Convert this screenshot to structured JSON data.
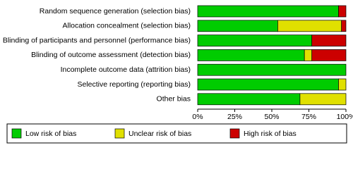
{
  "chart_data": {
    "type": "stacked_barh",
    "categories": [
      "Random sequence generation (selection bias)",
      "Allocation concealment (selection bias)",
      "Blinding of participants and personnel (performance bias)",
      "Blinding of outcome assessment (detection bias)",
      "Incomplete outcome data (attrition bias)",
      "Selective reporting (reporting bias)",
      "Other bias"
    ],
    "series": [
      {
        "name": "Low risk of bias",
        "color": "#00cc00",
        "values": [
          95,
          54,
          77,
          72,
          100,
          95,
          69
        ]
      },
      {
        "name": "Unclear risk of bias",
        "color": "#e0e000",
        "values": [
          0,
          43,
          0,
          5,
          0,
          5,
          31
        ]
      },
      {
        "name": "High risk of bias",
        "color": "#cc0000",
        "values": [
          5,
          3,
          23,
          23,
          0,
          0,
          0
        ]
      }
    ],
    "xlim": [
      0,
      100
    ],
    "xticks": [
      {
        "value": 0,
        "label": "0%"
      },
      {
        "value": 25,
        "label": "25%"
      },
      {
        "value": 50,
        "label": "50%"
      },
      {
        "value": 75,
        "label": "75%"
      },
      {
        "value": 100,
        "label": "100%"
      }
    ]
  }
}
